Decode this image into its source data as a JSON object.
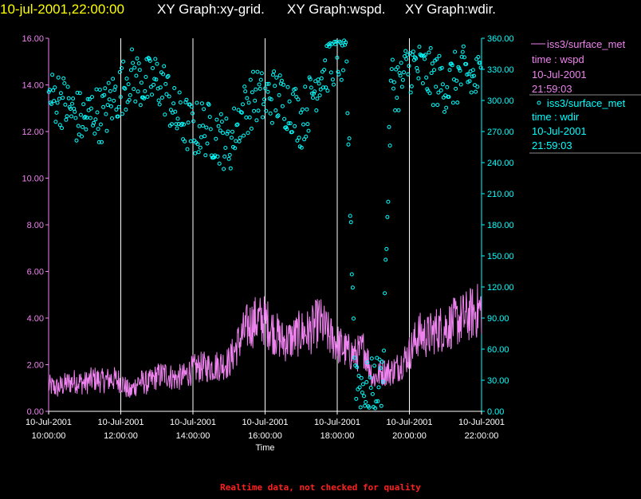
{
  "header": {
    "timestamp": "10-jul-2001,22:00:00",
    "graph_1": "XY Graph:xy-grid.",
    "graph_2": "XY Graph:wspd.",
    "graph_3": "XY Graph:wdir."
  },
  "legend": [
    {
      "line1": "iss3/surface_met",
      "line2": "time : wspd",
      "line3": "10-Jul-2001",
      "line4": "21:59:03",
      "color": "#ee82ee",
      "marker": "line"
    },
    {
      "line1": "iss3/surface_met",
      "line2": "time : wdir",
      "line3": "10-Jul-2001",
      "line4": "21:59:03",
      "color": "#00ffff",
      "marker": "circle"
    }
  ],
  "footer": {
    "note": "Realtime data, not checked for quality"
  },
  "chart_data": {
    "type": "line",
    "title": "",
    "xlabel": "Time",
    "x_tick_labels": [
      [
        "10-Jul-2001",
        "10:00:00"
      ],
      [
        "10-Jul-2001",
        "12:00:00"
      ],
      [
        "10-Jul-2001",
        "14:00:00"
      ],
      [
        "10-Jul-2001",
        "16:00:00"
      ],
      [
        "10-Jul-2001",
        "18:00:00"
      ],
      [
        "10-Jul-2001",
        "20:00:00"
      ],
      [
        "10-Jul-2001",
        "22:00:00"
      ]
    ],
    "x_hours": [
      10,
      12,
      14,
      16,
      18,
      20,
      22
    ],
    "xlim_hours": [
      10,
      22
    ],
    "left_axis": {
      "ylim": [
        0,
        16
      ],
      "ticks": [
        "0.00",
        "2.00",
        "4.00",
        "6.00",
        "8.00",
        "10.00",
        "12.00",
        "14.00",
        "16.00"
      ],
      "color": "#ee82ee"
    },
    "right_axis": {
      "ylim": [
        0,
        360
      ],
      "ticks": [
        "0.00",
        "30.00",
        "60.00",
        "90.00",
        "120.00",
        "150.00",
        "180.00",
        "210.00",
        "240.00",
        "270.00",
        "300.00",
        "330.00",
        "360.00"
      ],
      "color": "#00ffff"
    },
    "grid_hours": [
      12,
      14,
      16,
      18,
      20
    ],
    "series": [
      {
        "name": "wspd",
        "axis": "left",
        "style": "line",
        "color": "#ee82ee",
        "x_hours": [
          10.0,
          10.25,
          10.5,
          10.75,
          11.0,
          11.25,
          11.5,
          11.75,
          12.0,
          12.25,
          12.5,
          12.75,
          13.0,
          13.25,
          13.5,
          13.75,
          14.0,
          14.25,
          14.5,
          14.75,
          15.0,
          15.25,
          15.5,
          15.75,
          16.0,
          16.25,
          16.5,
          16.75,
          17.0,
          17.25,
          17.5,
          17.75,
          18.0,
          18.25,
          18.5,
          18.75,
          19.0,
          19.25,
          19.5,
          19.75,
          20.0,
          20.25,
          20.5,
          20.75,
          21.0,
          21.25,
          21.5,
          21.75,
          22.0
        ],
        "values": [
          1.1,
          1.0,
          1.2,
          1.3,
          1.2,
          1.4,
          1.3,
          1.4,
          1.3,
          0.8,
          1.3,
          1.2,
          1.5,
          1.6,
          1.4,
          1.5,
          1.8,
          1.9,
          1.9,
          2.0,
          2.1,
          2.9,
          3.6,
          3.9,
          3.9,
          3.4,
          3.0,
          3.1,
          3.4,
          3.4,
          3.9,
          3.3,
          2.9,
          2.6,
          2.4,
          2.7,
          1.4,
          1.7,
          1.7,
          2.0,
          2.5,
          3.3,
          3.2,
          3.5,
          3.6,
          3.8,
          4.0,
          4.2,
          4.4
        ]
      },
      {
        "name": "wdir",
        "axis": "right",
        "style": "scatter",
        "color": "#00ffff",
        "x_hours": [
          10.0,
          10.25,
          10.5,
          10.75,
          11.0,
          11.25,
          11.5,
          11.75,
          12.0,
          12.25,
          12.5,
          12.75,
          13.0,
          13.25,
          13.5,
          13.75,
          14.0,
          14.25,
          14.5,
          14.75,
          15.0,
          15.25,
          15.5,
          15.75,
          16.0,
          16.25,
          16.5,
          16.75,
          17.0,
          17.25,
          17.5,
          17.75,
          18.0,
          18.25,
          18.5,
          18.75,
          19.0,
          19.25,
          19.5,
          19.75,
          20.0,
          20.25,
          20.5,
          20.75,
          21.0,
          21.25,
          21.5,
          21.75,
          22.0
        ],
        "values": [
          300,
          305,
          295,
          285,
          280,
          290,
          285,
          300,
          310,
          325,
          320,
          315,
          320,
          310,
          285,
          280,
          270,
          275,
          270,
          265,
          255,
          280,
          295,
          305,
          300,
          305,
          300,
          295,
          280,
          300,
          325,
          335,
          345,
          340,
          35,
          20,
          25,
          30,
          320,
          315,
          335,
          330,
          325,
          320,
          315,
          320,
          325,
          320,
          320
        ]
      }
    ]
  }
}
